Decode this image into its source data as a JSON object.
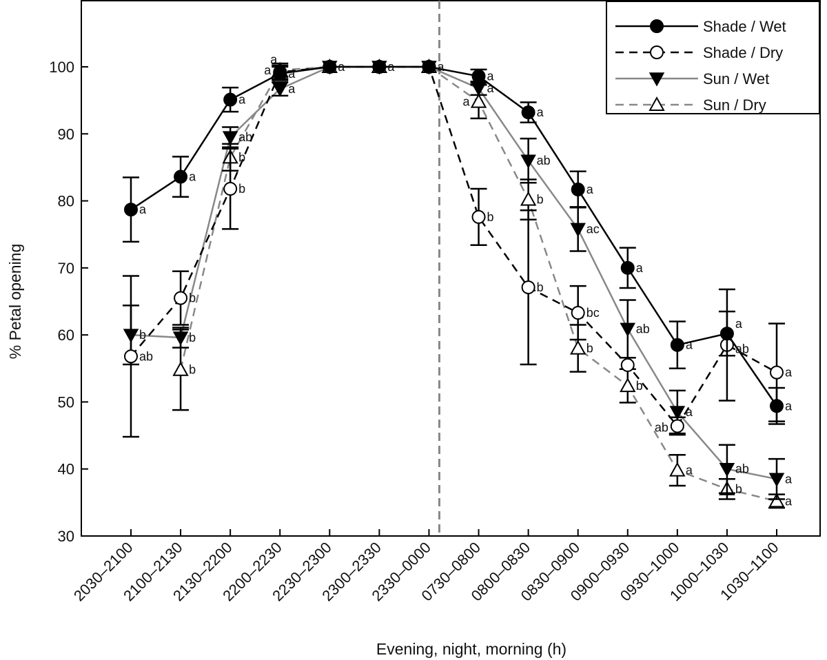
{
  "chart_data": {
    "type": "line",
    "title": "",
    "xlabel": "Evening, night, morning (h)",
    "ylabel": "% Petal opening",
    "ylim": [
      30,
      110
    ],
    "yticks": [
      30,
      40,
      50,
      60,
      70,
      80,
      90,
      100
    ],
    "grid": false,
    "legend_position": "top-right",
    "divider_after_category": "2330–0000",
    "categories": [
      "2030–2100",
      "2100–2130",
      "2130–2200",
      "2200–2230",
      "2230–2300",
      "2300–2330",
      "2330–0000",
      "0730–0800",
      "0800–0830",
      "0830–0900",
      "0900–0930",
      "0930–1000",
      "1000–1030",
      "1030–1100"
    ],
    "series": [
      {
        "name": "Shade / Wet",
        "color": "#000000",
        "dash": false,
        "marker": "filled-circle",
        "values": [
          78.7,
          83.6,
          95.1,
          99.0,
          100,
          100,
          100,
          98.6,
          93.2,
          81.7,
          70.0,
          58.5,
          60.2,
          49.4
        ],
        "errors": [
          4.8,
          3.0,
          1.8,
          1.0,
          0,
          0,
          0,
          1.0,
          1.5,
          2.7,
          3.0,
          3.5,
          3.3,
          2.7
        ],
        "labels": [
          "a",
          "a",
          "a",
          "a",
          "a",
          "a",
          "a",
          "a",
          "a",
          "a",
          "a",
          "a",
          "a",
          "a"
        ]
      },
      {
        "name": "Shade / Dry",
        "color": "#000000",
        "dash": true,
        "marker": "open-circle",
        "values": [
          56.8,
          65.5,
          81.8,
          99.2,
          100,
          100,
          100,
          77.6,
          67.1,
          63.3,
          55.5,
          46.4,
          58.5,
          54.4
        ],
        "errors": [
          12.0,
          4.0,
          6.0,
          1.0,
          0,
          0,
          0,
          4.2,
          11.5,
          4.0,
          0,
          1.3,
          8.3,
          7.3
        ],
        "labels": [
          "ab",
          "b",
          "b",
          "a",
          "",
          "",
          "",
          "b",
          "b",
          "bc",
          "",
          "ab",
          "ab",
          "a"
        ]
      },
      {
        "name": "Sun / Wet",
        "color": "#888888",
        "dash": false,
        "marker": "filled-triangle-down",
        "values": [
          60.0,
          59.6,
          89.5,
          96.7,
          100,
          100,
          100,
          96.8,
          86.0,
          75.8,
          60.9,
          48.5,
          40.0,
          38.5
        ],
        "errors": [
          4.4,
          1.5,
          1.5,
          1.0,
          0,
          0,
          0,
          1.0,
          3.3,
          3.3,
          4.3,
          3.2,
          3.6,
          3.0
        ],
        "labels": [
          "b",
          "b",
          "ab",
          "a",
          "",
          "",
          "",
          "a",
          "ab",
          "ac",
          "ab",
          "a",
          "ab",
          "a"
        ]
      },
      {
        "name": "Sun / Dry",
        "color": "#888888",
        "dash": true,
        "marker": "open-triangle-up",
        "values": [
          null,
          54.8,
          86.5,
          99.5,
          100,
          100,
          100,
          94.8,
          80.2,
          58.0,
          52.4,
          39.8,
          37.0,
          35.2
        ],
        "errors": [
          null,
          6.0,
          2.0,
          1.0,
          0,
          0,
          0,
          2.5,
          3.0,
          3.5,
          2.5,
          2.3,
          1.5,
          1.0
        ],
        "labels": [
          "",
          "b",
          "b",
          "a",
          "",
          "",
          "",
          "a",
          "b",
          "b",
          "b",
          "a",
          "b",
          "a"
        ]
      }
    ]
  }
}
